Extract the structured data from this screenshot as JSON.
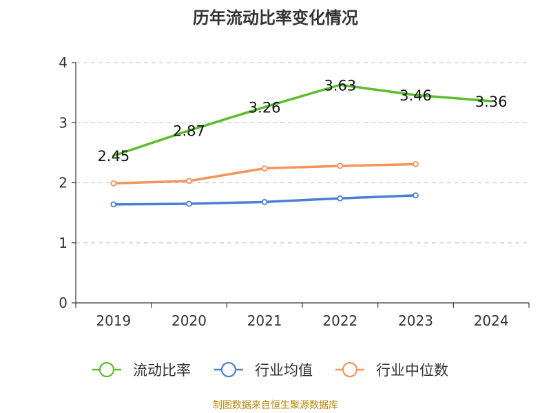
{
  "chart_data": {
    "type": "line",
    "title": "历年流动比率变化情况",
    "categories": [
      "2019",
      "2020",
      "2021",
      "2022",
      "2023",
      "2024"
    ],
    "ylim": [
      0,
      4
    ],
    "yticks": [
      0,
      1,
      2,
      3,
      4
    ],
    "grid": true,
    "legend_position": "bottom",
    "series": [
      {
        "name": "流动比率",
        "color": "#5bbd2b",
        "values": [
          2.45,
          2.87,
          3.26,
          3.63,
          3.46,
          3.36
        ],
        "show_labels": true
      },
      {
        "name": "行业均值",
        "color": "#4a7fd4",
        "values": [
          1.64,
          1.65,
          1.68,
          1.74,
          1.79,
          null
        ],
        "show_labels": false
      },
      {
        "name": "行业中位数",
        "color": "#f4935a",
        "values": [
          1.99,
          2.03,
          2.24,
          2.28,
          2.31,
          null
        ],
        "show_labels": false
      }
    ]
  },
  "footer": {
    "source": "制图数据来自恒生聚源数据库"
  }
}
